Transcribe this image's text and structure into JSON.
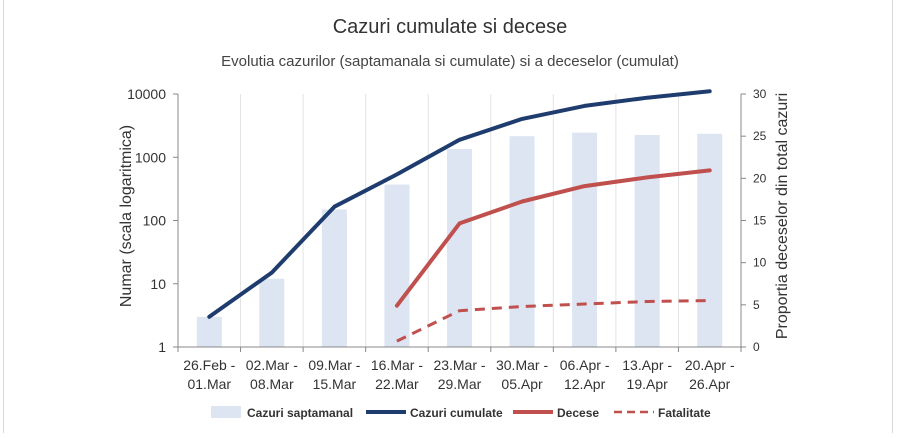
{
  "chart_data": {
    "type": "bar+line",
    "title": "Cazuri cumulate si decese",
    "subtitle": "Evolutia cazurilor (saptamanala si cumulate) si a deceselor (cumulat)",
    "ylabel": "Numar (scala logaritmica)",
    "y2label": "Proportia deceselor din total cazuri",
    "categories": [
      [
        "26.Feb -",
        "01.Mar"
      ],
      [
        "02.Mar -",
        "08.Mar"
      ],
      [
        "09.Mar -",
        "15.Mar"
      ],
      [
        "16.Mar -",
        "22.Mar"
      ],
      [
        "23.Mar -",
        "29.Mar"
      ],
      [
        "30.Mar -",
        "05.Apr"
      ],
      [
        "06.Apr -",
        "12.Apr"
      ],
      [
        "13.Apr -",
        "19.Apr"
      ],
      [
        "20.Apr -",
        "26.Apr"
      ]
    ],
    "y_axis": {
      "scale": "log",
      "min": 1,
      "max": 10000,
      "ticks": [
        "1",
        "10",
        "100",
        "1000",
        "10000"
      ]
    },
    "y2_axis": {
      "scale": "linear",
      "min": 0,
      "max": 30,
      "ticks": [
        "0",
        "5",
        "10",
        "15",
        "20",
        "25",
        "30"
      ]
    },
    "grid": "vertical category lines",
    "legend_position": "bottom",
    "series": [
      {
        "name": "Cazuri saptamanal",
        "type": "bar",
        "axis": "y",
        "color": "#dde4f2",
        "values": [
          3,
          12,
          150,
          370,
          1350,
          2150,
          2450,
          2250,
          2350
        ]
      },
      {
        "name": "Cazuri cumulate",
        "type": "line",
        "axis": "y",
        "color": "#1f3c6e",
        "values": [
          3,
          15,
          165,
          535,
          1885,
          4035,
          6485,
          8735,
          11085
        ]
      },
      {
        "name": "Decese",
        "type": "line",
        "axis": "y",
        "color": "#c0504d",
        "values": [
          null,
          null,
          null,
          4.5,
          90,
          200,
          350,
          480,
          620
        ]
      },
      {
        "name": "Fatalitate",
        "type": "dashed-line",
        "axis": "y2",
        "color": "#c0504d",
        "values": [
          null,
          null,
          null,
          0.7,
          4.3,
          4.8,
          5.1,
          5.4,
          5.5
        ]
      }
    ]
  }
}
